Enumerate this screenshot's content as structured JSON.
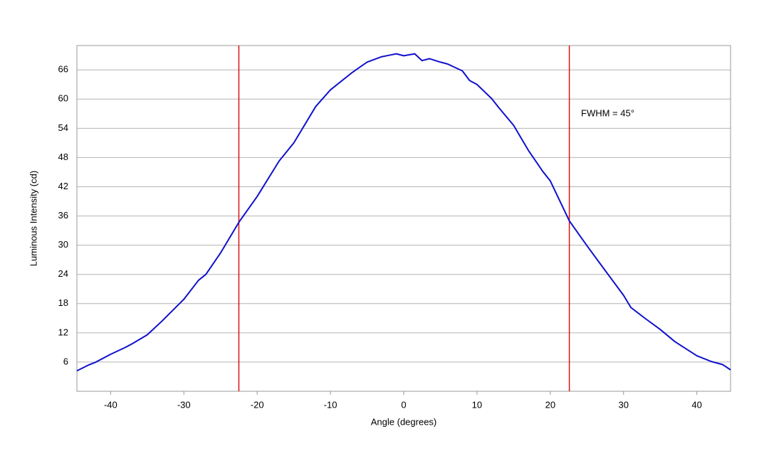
{
  "chart_data": {
    "type": "line",
    "xlabel": "Angle (degrees)",
    "ylabel": "Luminous Intensity (cd)",
    "annotation": "FWHM = 45°",
    "x": [
      -44.6,
      -43,
      -42,
      -40,
      -38,
      -37,
      -35,
      -33,
      -30,
      -28,
      -27,
      -25,
      -22.5,
      -20,
      -17,
      -15,
      -12,
      -10,
      -7,
      -5,
      -3,
      -2,
      -1,
      0,
      1.5,
      2.5,
      3.5,
      5,
      6,
      8,
      9,
      10,
      12,
      13,
      15,
      17,
      19,
      20,
      22.6,
      25,
      27,
      30,
      31,
      33,
      35,
      37,
      40,
      42,
      43.5,
      44.6
    ],
    "series": [
      {
        "color": "#1010cc",
        "values": [
          4.2,
          5.4,
          6.0,
          7.6,
          9.0,
          9.8,
          11.6,
          14.4,
          18.9,
          22.8,
          24,
          28.4,
          34.7,
          40,
          47.3,
          51,
          58.5,
          61.9,
          65.5,
          67.6,
          68.7,
          69.0,
          69.3,
          68.9,
          69.3,
          67.9,
          68.3,
          67.6,
          67.2,
          65.8,
          63.8,
          63,
          60.1,
          58.2,
          54.6,
          49.5,
          45.1,
          43.2,
          35,
          29.9,
          25.8,
          19.7,
          17.2,
          14.9,
          12.7,
          10.2,
          7.3,
          6.1,
          5.5,
          4.4
        ]
      }
    ],
    "vlines": [
      -22.5,
      22.6
    ],
    "vline_color": "#dd1111",
    "xlim": [
      -44.6,
      44.6
    ],
    "ylim": [
      0,
      71
    ],
    "xticks": [
      -40,
      -30,
      -20,
      -10,
      0,
      10,
      20,
      30,
      40
    ],
    "yticks": [
      6,
      12,
      18,
      24,
      30,
      36,
      42,
      48,
      54,
      60,
      66
    ],
    "grid": true
  }
}
